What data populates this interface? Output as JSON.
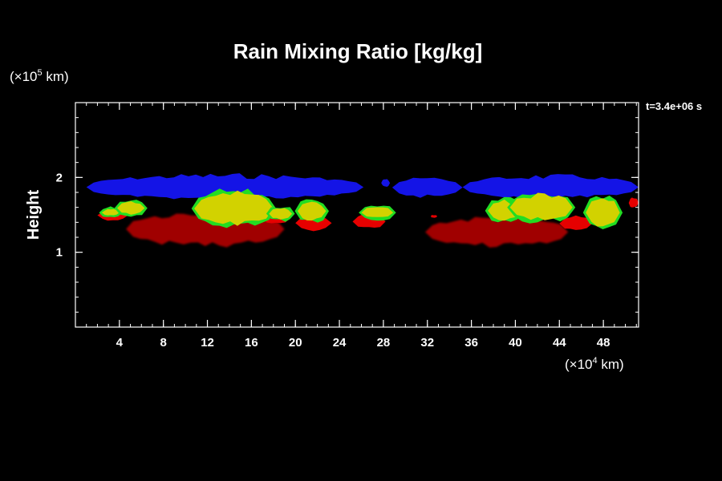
{
  "chart_data": {
    "type": "contour",
    "title": "Rain Mixing Ratio [kg/kg]",
    "time_label": "t=3.4e+06 s",
    "ylabel": "Height",
    "y_scale": {
      "prefix": "(×10",
      "exponent": "5",
      "suffix": " km)"
    },
    "x_scale": {
      "prefix": "(×10",
      "exponent": "4",
      "suffix": " km)"
    },
    "xlim": [
      0,
      51.2
    ],
    "ylim": [
      0,
      3.0
    ],
    "x_ticks": [
      {
        "value": 4,
        "label": "4"
      },
      {
        "value": 8,
        "label": "8"
      },
      {
        "value": 12,
        "label": "12"
      },
      {
        "value": 16,
        "label": "16"
      },
      {
        "value": 20,
        "label": "20"
      },
      {
        "value": 24,
        "label": "24"
      },
      {
        "value": 28,
        "label": "28"
      },
      {
        "value": 32,
        "label": "32"
      },
      {
        "value": 36,
        "label": "36"
      },
      {
        "value": 40,
        "label": "40"
      },
      {
        "value": 44,
        "label": "44"
      },
      {
        "value": 48,
        "label": "48"
      }
    ],
    "y_ticks": [
      {
        "value": 1,
        "label": "1"
      },
      {
        "value": 2,
        "label": "2"
      }
    ],
    "x_minor_step": 1,
    "y_minor_step": 0.2,
    "colors": {
      "background": "#000000",
      "frame": "#ffffff",
      "blue": "#1414e6",
      "red": "#e60000",
      "dark_red": "#a00000",
      "yellow": "#d2d200",
      "green": "#22dd22"
    },
    "regions": [
      {
        "name": "blue-band-west",
        "color": "blue",
        "x0": 1.0,
        "x1": 26.2,
        "y0": 1.72,
        "y1": 2.02
      },
      {
        "name": "blue-band-middle",
        "color": "blue",
        "x0": 28.8,
        "x1": 35.2,
        "y0": 1.75,
        "y1": 1.98
      },
      {
        "name": "blue-band-east",
        "color": "blue",
        "x0": 35.2,
        "x1": 51.2,
        "y0": 1.73,
        "y1": 2.01
      },
      {
        "name": "blue-blob-small",
        "color": "blue",
        "x0": 27.8,
        "x1": 28.6,
        "y0": 1.88,
        "y1": 1.97
      },
      {
        "name": "red-low-west",
        "color": "dark_red",
        "x0": 4.6,
        "x1": 19.0,
        "y0": 1.1,
        "y1": 1.52
      },
      {
        "name": "red-low-east",
        "color": "dark_red",
        "x0": 31.8,
        "x1": 44.8,
        "y0": 1.09,
        "y1": 1.45
      },
      {
        "name": "red-mid-a",
        "color": "red",
        "x0": 2.0,
        "x1": 4.8,
        "y0": 1.43,
        "y1": 1.56
      },
      {
        "name": "red-mid-b",
        "color": "red",
        "x0": 20.0,
        "x1": 23.3,
        "y0": 1.3,
        "y1": 1.48
      },
      {
        "name": "red-mid-c",
        "color": "red",
        "x0": 25.2,
        "x1": 28.2,
        "y0": 1.32,
        "y1": 1.5
      },
      {
        "name": "red-mid-d",
        "color": "red",
        "x0": 17.0,
        "x1": 19.5,
        "y0": 1.38,
        "y1": 1.52
      },
      {
        "name": "red-mid-e",
        "color": "red",
        "x0": 44.0,
        "x1": 47.0,
        "y0": 1.3,
        "y1": 1.47
      },
      {
        "name": "red-edge",
        "color": "red",
        "x0": 50.3,
        "x1": 51.2,
        "y0": 1.6,
        "y1": 1.72
      },
      {
        "name": "red-dot",
        "color": "red",
        "x0": 32.3,
        "x1": 32.9,
        "y0": 1.46,
        "y1": 1.5
      },
      {
        "name": "yellow-a",
        "color": "yellow",
        "x0": 2.4,
        "x1": 4.0,
        "y0": 1.49,
        "y1": 1.57
      },
      {
        "name": "yellow-b",
        "color": "yellow",
        "x0": 3.8,
        "x1": 6.3,
        "y0": 1.51,
        "y1": 1.67
      },
      {
        "name": "yellow-c",
        "color": "yellow",
        "x0": 10.8,
        "x1": 18.0,
        "y0": 1.39,
        "y1": 1.78
      },
      {
        "name": "yellow-d",
        "color": "yellow",
        "x0": 17.6,
        "x1": 19.7,
        "y0": 1.45,
        "y1": 1.58
      },
      {
        "name": "yellow-e",
        "color": "yellow",
        "x0": 20.2,
        "x1": 22.8,
        "y0": 1.44,
        "y1": 1.66
      },
      {
        "name": "yellow-f",
        "color": "yellow",
        "x0": 26.0,
        "x1": 28.9,
        "y0": 1.46,
        "y1": 1.6
      },
      {
        "name": "yellow-g",
        "color": "yellow",
        "x0": 37.5,
        "x1": 40.5,
        "y0": 1.43,
        "y1": 1.68
      },
      {
        "name": "yellow-h",
        "color": "yellow",
        "x0": 39.5,
        "x1": 45.2,
        "y0": 1.44,
        "y1": 1.76
      },
      {
        "name": "yellow-i",
        "color": "yellow",
        "x0": 46.4,
        "x1": 49.5,
        "y0": 1.36,
        "y1": 1.7
      }
    ]
  }
}
